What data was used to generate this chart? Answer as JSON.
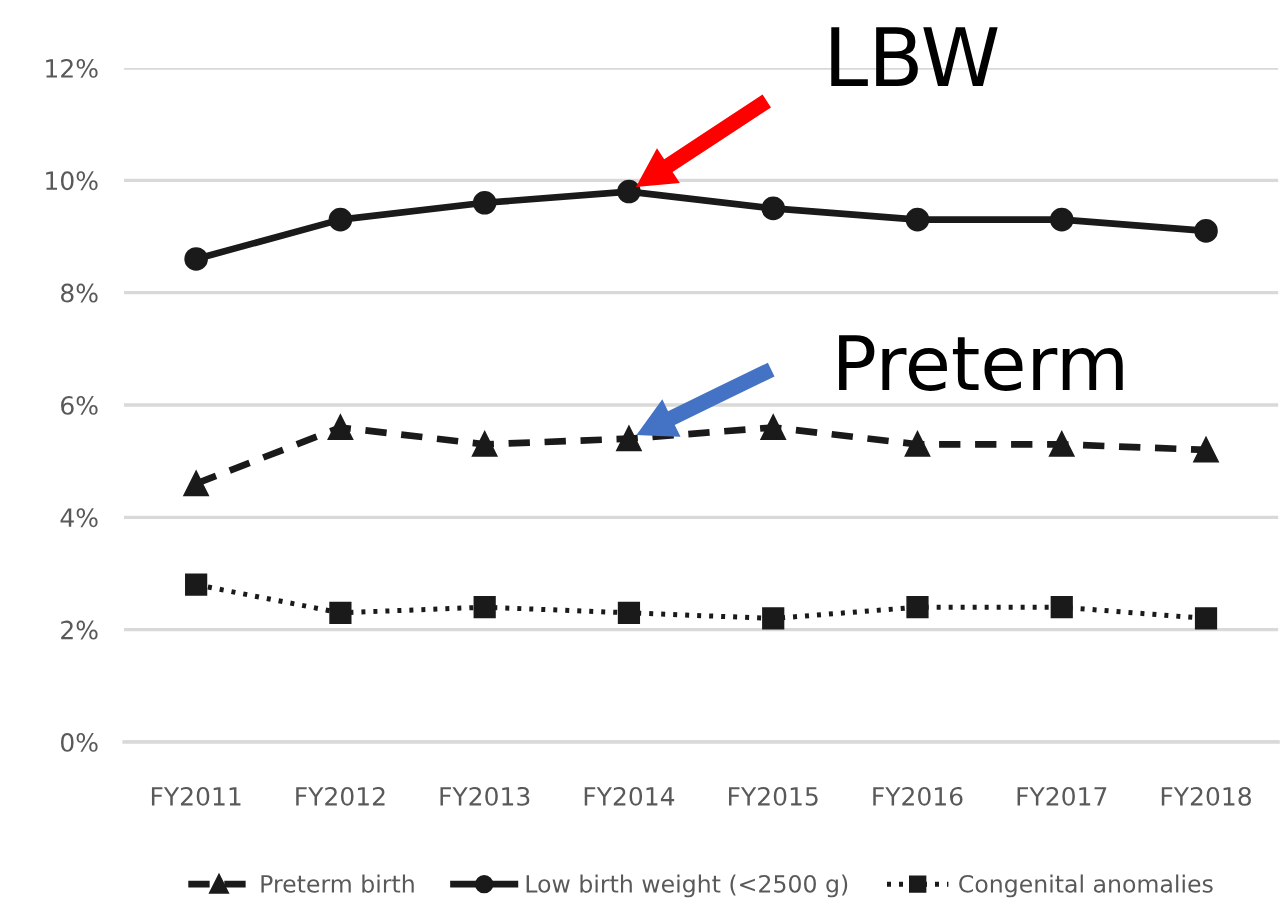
{
  "chart_data": {
    "type": "line",
    "categories": [
      "FY2011",
      "FY2012",
      "FY2013",
      "FY2014",
      "FY2015",
      "FY2016",
      "FY2017",
      "FY2018"
    ],
    "series": [
      {
        "name": "Preterm birth",
        "color": "#1a1a1a",
        "marker": "triangle",
        "line_style": "dashed",
        "values": [
          4.6,
          5.6,
          5.3,
          5.4,
          5.6,
          5.3,
          5.3,
          5.2
        ]
      },
      {
        "name": "Low birth weight (<2500 g)",
        "color": "#1a1a1a",
        "marker": "circle",
        "line_style": "solid",
        "values": [
          8.6,
          9.3,
          9.6,
          9.8,
          9.5,
          9.3,
          9.3,
          9.1
        ]
      },
      {
        "name": "Congenital anomalies",
        "color": "#1a1a1a",
        "marker": "square",
        "line_style": "dotted",
        "values": [
          2.8,
          2.3,
          2.4,
          2.3,
          2.2,
          2.4,
          2.4,
          2.2
        ]
      }
    ],
    "ylim": [
      0,
      12
    ],
    "yticks": [
      {
        "value": 0,
        "label": "0%"
      },
      {
        "value": 2,
        "label": "2%"
      },
      {
        "value": 4,
        "label": "4%"
      },
      {
        "value": 6,
        "label": "6%"
      },
      {
        "value": 8,
        "label": "8%"
      },
      {
        "value": 10,
        "label": "10%"
      },
      {
        "value": 12,
        "label": "12%"
      }
    ],
    "grid": "y",
    "legend": "bottom",
    "annotations": [
      {
        "text": "LBW",
        "x": "FY2014",
        "y": 9.8
      },
      {
        "text": "Preterm",
        "x": "FY2014",
        "y": 5.4
      }
    ]
  }
}
